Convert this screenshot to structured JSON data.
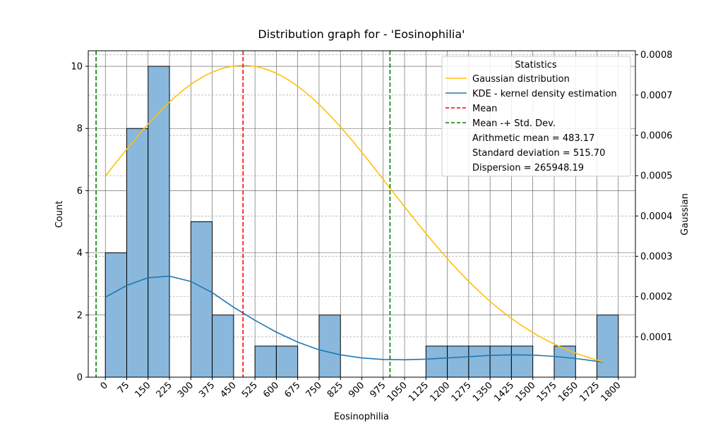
{
  "chart_data": {
    "type": "bar",
    "title": "Distribution graph for - 'Eosinophilia'",
    "xlabel": "Eosinophilia",
    "ylabel": "Count",
    "y2label": "Gaussian",
    "xlim": [
      -60,
      1860
    ],
    "ylim": [
      0,
      10.5
    ],
    "y2lim": [
      0.0,
      0.00081
    ],
    "x_ticks": [
      "0",
      "75",
      "150",
      "225",
      "300",
      "375",
      "450",
      "525",
      "600",
      "675",
      "750",
      "825",
      "900",
      "975",
      "1050",
      "1125",
      "1200",
      "1275",
      "1350",
      "1425",
      "1500",
      "1575",
      "1650",
      "1725",
      "1800"
    ],
    "y_ticks": [
      "0",
      "2",
      "4",
      "6",
      "8",
      "10"
    ],
    "y2_ticks": [
      "0.0001",
      "0.0002",
      "0.0003",
      "0.0004",
      "0.0005",
      "0.0006",
      "0.0007",
      "0.0008"
    ],
    "bins": [
      {
        "x0": 0,
        "x1": 75,
        "count": 4
      },
      {
        "x0": 75,
        "x1": 150,
        "count": 8
      },
      {
        "x0": 150,
        "x1": 225,
        "count": 10
      },
      {
        "x0": 300,
        "x1": 375,
        "count": 5
      },
      {
        "x0": 375,
        "x1": 450,
        "count": 2
      },
      {
        "x0": 525,
        "x1": 600,
        "count": 1
      },
      {
        "x0": 600,
        "x1": 675,
        "count": 1
      },
      {
        "x0": 750,
        "x1": 825,
        "count": 2
      },
      {
        "x0": 1125,
        "x1": 1200,
        "count": 1
      },
      {
        "x0": 1200,
        "x1": 1275,
        "count": 1
      },
      {
        "x0": 1275,
        "x1": 1350,
        "count": 1
      },
      {
        "x0": 1350,
        "x1": 1425,
        "count": 1
      },
      {
        "x0": 1425,
        "x1": 1500,
        "count": 1
      },
      {
        "x0": 1575,
        "x1": 1650,
        "count": 1
      },
      {
        "x0": 1725,
        "x1": 1800,
        "count": 2
      }
    ],
    "gaussian": {
      "mean": 483.17,
      "std": 515.7,
      "x_range": [
        0,
        1750
      ]
    },
    "kde": {
      "x": [
        0,
        75,
        150,
        225,
        300,
        375,
        450,
        525,
        600,
        675,
        750,
        825,
        900,
        975,
        1050,
        1125,
        1200,
        1275,
        1350,
        1425,
        1500,
        1575,
        1650,
        1750
      ],
      "y": [
        2.57,
        2.95,
        3.2,
        3.25,
        3.08,
        2.72,
        2.25,
        1.83,
        1.45,
        1.13,
        0.88,
        0.72,
        0.62,
        0.57,
        0.56,
        0.58,
        0.62,
        0.66,
        0.7,
        0.72,
        0.71,
        0.67,
        0.6,
        0.48
      ]
    },
    "mean_line": 483.17,
    "std_lines": [
      -32.53,
      998.87
    ],
    "grid": true,
    "legend_placement": "top-right",
    "colors": {
      "bar_fill": "#89b8dc",
      "bar_edge": "#000000",
      "gaussian": "#ffc107",
      "kde": "#1f77b4",
      "mean": "#ff0000",
      "std": "#008000"
    },
    "legend": {
      "title": "Statistics",
      "items": [
        {
          "label": "Gaussian distribution",
          "kind": "line",
          "color": "#ffc107",
          "dash": false
        },
        {
          "label": "KDE - kernel density estimation",
          "kind": "line",
          "color": "#1f77b4",
          "dash": false
        },
        {
          "label": "Mean",
          "kind": "line",
          "color": "#ff0000",
          "dash": true
        },
        {
          "label": "Mean -+ Std. Dev.",
          "kind": "line",
          "color": "#008000",
          "dash": true
        },
        {
          "label": "Arithmetic mean = 483.17",
          "kind": "text"
        },
        {
          "label": "Standard deviation = 515.70",
          "kind": "text"
        },
        {
          "label": "Dispersion = 265948.19",
          "kind": "text"
        }
      ]
    }
  }
}
